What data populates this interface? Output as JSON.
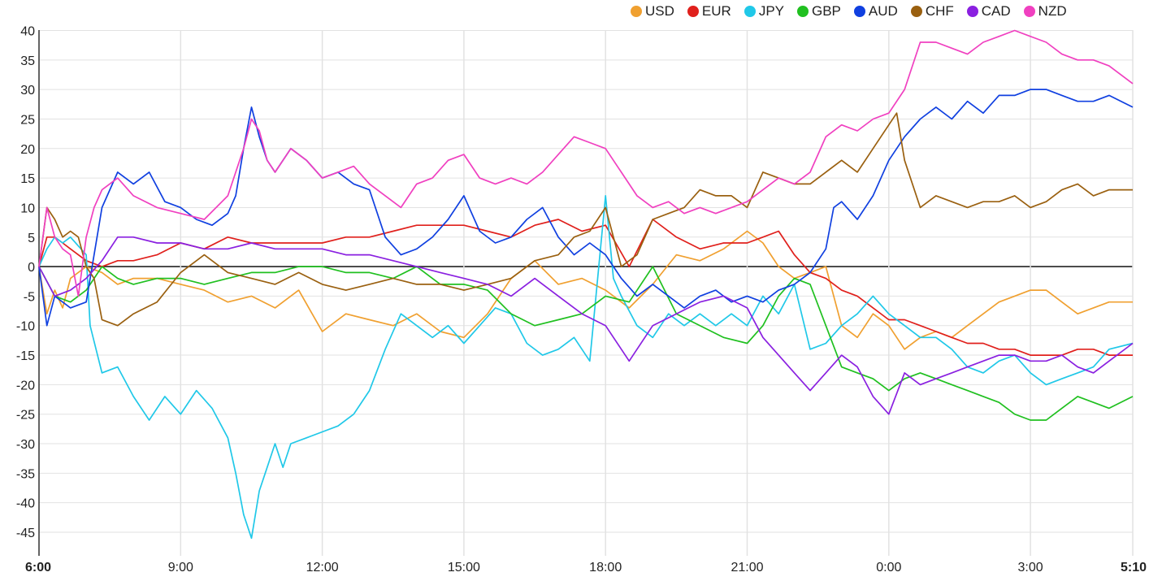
{
  "chart_data": {
    "type": "line",
    "title": "",
    "xlabel": "",
    "ylabel": "",
    "ylim": [
      -47,
      41
    ],
    "yticks": [
      40,
      35,
      30,
      25,
      20,
      15,
      10,
      5,
      0,
      -5,
      -10,
      -15,
      -20,
      -25,
      -30,
      -35,
      -40,
      -45
    ],
    "xticks": [
      {
        "label": "6:00",
        "x": 0,
        "bold": true
      },
      {
        "label": "9:00",
        "x": 180,
        "bold": false
      },
      {
        "label": "12:00",
        "x": 360,
        "bold": false
      },
      {
        "label": "15:00",
        "x": 540,
        "bold": false
      },
      {
        "label": "18:00",
        "x": 720,
        "bold": false
      },
      {
        "label": "21:00",
        "x": 900,
        "bold": false
      },
      {
        "label": "0:00",
        "x": 1080,
        "bold": false
      },
      {
        "label": "3:00",
        "x": 1260,
        "bold": false
      },
      {
        "label": "5:10",
        "x": 1390,
        "bold": true
      }
    ],
    "xlim": [
      0,
      1390
    ],
    "x_unit": "minutes",
    "grid": true,
    "legend_position": "top-right",
    "series": [
      {
        "name": "USD",
        "color": "#f0a030",
        "x": [
          0,
          10,
          20,
          30,
          40,
          60,
          80,
          100,
          120,
          150,
          180,
          210,
          240,
          270,
          300,
          330,
          360,
          390,
          420,
          450,
          480,
          510,
          540,
          570,
          600,
          630,
          660,
          690,
          720,
          750,
          780,
          810,
          840,
          870,
          900,
          920,
          940,
          960,
          980,
          1000,
          1020,
          1040,
          1060,
          1080,
          1100,
          1120,
          1140,
          1160,
          1180,
          1200,
          1220,
          1240,
          1260,
          1280,
          1300,
          1320,
          1340,
          1360,
          1390
        ],
        "y": [
          0,
          -8,
          -4,
          -7,
          -2,
          0,
          -1,
          -3,
          -2,
          -2,
          -3,
          -4,
          -6,
          -5,
          -7,
          -4,
          -11,
          -8,
          -9,
          -10,
          -8,
          -11,
          -12,
          -8,
          -2,
          1,
          -3,
          -2,
          -4,
          -7,
          -3,
          2,
          1,
          3,
          6,
          4,
          0,
          -2,
          -1,
          0,
          -10,
          -12,
          -8,
          -10,
          -14,
          -12,
          -11,
          -12,
          -10,
          -8,
          -6,
          -5,
          -4,
          -4,
          -6,
          -8,
          -7,
          -6,
          -6
        ]
      },
      {
        "name": "EUR",
        "color": "#e0201c",
        "x": [
          0,
          10,
          20,
          30,
          40,
          60,
          80,
          100,
          120,
          150,
          180,
          210,
          240,
          270,
          300,
          330,
          360,
          390,
          420,
          450,
          480,
          510,
          540,
          570,
          600,
          630,
          660,
          690,
          720,
          750,
          780,
          810,
          840,
          870,
          900,
          920,
          940,
          960,
          980,
          1000,
          1020,
          1040,
          1060,
          1080,
          1100,
          1120,
          1140,
          1160,
          1180,
          1200,
          1220,
          1240,
          1260,
          1280,
          1300,
          1320,
          1340,
          1360,
          1390
        ],
        "y": [
          0,
          5,
          5,
          4,
          3,
          1,
          0,
          1,
          1,
          2,
          4,
          3,
          5,
          4,
          4,
          4,
          4,
          5,
          5,
          6,
          7,
          7,
          7,
          6,
          5,
          7,
          8,
          6,
          7,
          0,
          8,
          5,
          3,
          4,
          4,
          5,
          6,
          2,
          -1,
          -2,
          -4,
          -5,
          -7,
          -9,
          -9,
          -10,
          -11,
          -12,
          -13,
          -13,
          -14,
          -14,
          -15,
          -15,
          -15,
          -14,
          -14,
          -15,
          -15
        ]
      },
      {
        "name": "JPY",
        "color": "#20c8e8",
        "x": [
          0,
          10,
          20,
          30,
          40,
          60,
          65,
          80,
          100,
          120,
          140,
          160,
          180,
          200,
          220,
          240,
          250,
          260,
          270,
          280,
          290,
          300,
          310,
          320,
          340,
          360,
          380,
          400,
          420,
          440,
          460,
          480,
          500,
          520,
          540,
          560,
          580,
          600,
          620,
          640,
          660,
          680,
          700,
          720,
          730,
          740,
          760,
          780,
          800,
          820,
          840,
          860,
          880,
          900,
          920,
          940,
          960,
          980,
          1000,
          1020,
          1040,
          1060,
          1080,
          1100,
          1120,
          1140,
          1160,
          1180,
          1200,
          1220,
          1240,
          1260,
          1280,
          1300,
          1320,
          1340,
          1360,
          1390
        ],
        "y": [
          0,
          3,
          5,
          4,
          5,
          2,
          -10,
          -18,
          -17,
          -22,
          -26,
          -22,
          -25,
          -21,
          -24,
          -29,
          -35,
          -42,
          -46,
          -38,
          -34,
          -30,
          -34,
          -30,
          -29,
          -28,
          -27,
          -25,
          -21,
          -14,
          -8,
          -10,
          -12,
          -10,
          -13,
          -10,
          -7,
          -8,
          -13,
          -15,
          -14,
          -12,
          -16,
          12,
          -2,
          -5,
          -10,
          -12,
          -8,
          -10,
          -8,
          -10,
          -8,
          -10,
          -5,
          -8,
          -3,
          -14,
          -13,
          -10,
          -8,
          -5,
          -8,
          -10,
          -12,
          -12,
          -14,
          -17,
          -18,
          -16,
          -15,
          -18,
          -20,
          -19,
          -18,
          -17,
          -14,
          -13
        ]
      },
      {
        "name": "GBP",
        "color": "#20c020",
        "x": [
          0,
          20,
          40,
          60,
          80,
          100,
          120,
          150,
          180,
          210,
          240,
          270,
          300,
          330,
          360,
          390,
          420,
          450,
          480,
          510,
          540,
          570,
          600,
          630,
          660,
          690,
          720,
          750,
          780,
          810,
          840,
          870,
          900,
          920,
          940,
          960,
          980,
          1000,
          1020,
          1040,
          1060,
          1080,
          1100,
          1120,
          1140,
          1160,
          1180,
          1200,
          1220,
          1240,
          1260,
          1280,
          1300,
          1320,
          1340,
          1360,
          1390
        ],
        "y": [
          0,
          -5,
          -6,
          -4,
          0,
          -2,
          -3,
          -2,
          -2,
          -3,
          -2,
          -1,
          -1,
          0,
          0,
          -1,
          -1,
          -2,
          0,
          -3,
          -3,
          -4,
          -8,
          -10,
          -9,
          -8,
          -5,
          -6,
          0,
          -8,
          -10,
          -12,
          -13,
          -10,
          -5,
          -2,
          -3,
          -10,
          -17,
          -18,
          -19,
          -21,
          -19,
          -18,
          -19,
          -20,
          -21,
          -22,
          -23,
          -25,
          -26,
          -26,
          -24,
          -22,
          -23,
          -24,
          -22
        ]
      },
      {
        "name": "AUD",
        "color": "#1040e0",
        "x": [
          0,
          10,
          20,
          30,
          40,
          60,
          80,
          100,
          120,
          140,
          160,
          180,
          200,
          220,
          240,
          250,
          260,
          270,
          280,
          290,
          300,
          320,
          340,
          360,
          380,
          400,
          420,
          440,
          460,
          480,
          500,
          520,
          540,
          560,
          580,
          600,
          620,
          640,
          660,
          680,
          700,
          720,
          740,
          760,
          780,
          800,
          820,
          840,
          860,
          880,
          900,
          920,
          940,
          960,
          980,
          1000,
          1010,
          1020,
          1040,
          1060,
          1080,
          1100,
          1120,
          1140,
          1160,
          1180,
          1200,
          1220,
          1240,
          1260,
          1280,
          1300,
          1320,
          1340,
          1360,
          1390
        ],
        "y": [
          0,
          -10,
          -5,
          -6,
          -7,
          -6,
          10,
          16,
          14,
          16,
          11,
          10,
          8,
          7,
          9,
          12,
          20,
          27,
          22,
          18,
          16,
          20,
          18,
          15,
          16,
          14,
          13,
          5,
          2,
          3,
          5,
          8,
          12,
          6,
          4,
          5,
          8,
          10,
          5,
          2,
          4,
          2,
          -2,
          -5,
          -3,
          -5,
          -7,
          -5,
          -4,
          -6,
          -5,
          -6,
          -4,
          -3,
          -1,
          3,
          10,
          11,
          8,
          12,
          18,
          22,
          25,
          27,
          25,
          28,
          26,
          29,
          29,
          30,
          30,
          29,
          28,
          28,
          29,
          27
        ]
      },
      {
        "name": "CHF",
        "color": "#9a6010",
        "x": [
          0,
          10,
          20,
          30,
          40,
          50,
          60,
          70,
          80,
          100,
          120,
          150,
          180,
          210,
          240,
          270,
          300,
          330,
          360,
          390,
          420,
          450,
          480,
          510,
          540,
          570,
          600,
          630,
          660,
          680,
          700,
          720,
          740,
          760,
          780,
          800,
          820,
          840,
          860,
          880,
          900,
          920,
          940,
          960,
          980,
          1000,
          1020,
          1040,
          1060,
          1080,
          1090,
          1100,
          1120,
          1140,
          1160,
          1180,
          1200,
          1220,
          1240,
          1260,
          1280,
          1300,
          1320,
          1340,
          1360,
          1390
        ],
        "y": [
          0,
          10,
          8,
          5,
          6,
          5,
          0,
          -2,
          -9,
          -10,
          -8,
          -6,
          -1,
          2,
          -1,
          -2,
          -3,
          -1,
          -3,
          -4,
          -3,
          -2,
          -3,
          -3,
          -4,
          -3,
          -2,
          1,
          2,
          5,
          6,
          10,
          0,
          2,
          8,
          9,
          10,
          13,
          12,
          12,
          10,
          16,
          15,
          14,
          14,
          16,
          18,
          16,
          20,
          24,
          26,
          18,
          10,
          12,
          11,
          10,
          11,
          11,
          12,
          10,
          11,
          13,
          14,
          12,
          13,
          13
        ]
      },
      {
        "name": "CAD",
        "color": "#8a20e0",
        "x": [
          0,
          20,
          40,
          60,
          80,
          100,
          120,
          150,
          180,
          210,
          240,
          270,
          300,
          330,
          360,
          390,
          420,
          450,
          480,
          510,
          540,
          570,
          600,
          630,
          660,
          690,
          720,
          750,
          780,
          810,
          840,
          870,
          900,
          920,
          940,
          960,
          980,
          1000,
          1020,
          1040,
          1060,
          1080,
          1100,
          1120,
          1140,
          1160,
          1180,
          1200,
          1220,
          1240,
          1260,
          1280,
          1300,
          1320,
          1340,
          1360,
          1390
        ],
        "y": [
          0,
          -5,
          -4,
          -2,
          1,
          5,
          5,
          4,
          4,
          3,
          3,
          4,
          3,
          3,
          3,
          2,
          2,
          1,
          0,
          -1,
          -2,
          -3,
          -5,
          -2,
          -5,
          -8,
          -10,
          -16,
          -10,
          -8,
          -6,
          -5,
          -7,
          -12,
          -15,
          -18,
          -21,
          -18,
          -15,
          -17,
          -22,
          -25,
          -18,
          -20,
          -19,
          -18,
          -17,
          -16,
          -15,
          -15,
          -16,
          -16,
          -15,
          -17,
          -18,
          -16,
          -13
        ]
      },
      {
        "name": "NZD",
        "color": "#f040c0",
        "x": [
          0,
          10,
          20,
          30,
          40,
          50,
          60,
          70,
          80,
          100,
          120,
          150,
          180,
          210,
          240,
          260,
          270,
          280,
          290,
          300,
          320,
          340,
          360,
          380,
          400,
          420,
          440,
          460,
          480,
          500,
          520,
          540,
          560,
          580,
          600,
          620,
          640,
          660,
          680,
          700,
          720,
          740,
          760,
          780,
          800,
          820,
          840,
          860,
          880,
          900,
          920,
          940,
          960,
          980,
          1000,
          1020,
          1040,
          1060,
          1080,
          1100,
          1120,
          1140,
          1160,
          1180,
          1200,
          1220,
          1240,
          1260,
          1280,
          1300,
          1320,
          1340,
          1360,
          1390
        ],
        "y": [
          0,
          10,
          5,
          3,
          2,
          -5,
          5,
          10,
          13,
          15,
          12,
          10,
          9,
          8,
          12,
          20,
          25,
          23,
          18,
          16,
          20,
          18,
          15,
          16,
          17,
          14,
          12,
          10,
          14,
          15,
          18,
          19,
          15,
          14,
          15,
          14,
          16,
          19,
          22,
          21,
          20,
          16,
          12,
          10,
          11,
          9,
          10,
          9,
          10,
          11,
          13,
          15,
          14,
          16,
          22,
          24,
          23,
          25,
          26,
          30,
          38,
          38,
          37,
          36,
          38,
          39,
          40,
          39,
          38,
          36,
          35,
          35,
          34,
          31
        ]
      }
    ]
  }
}
